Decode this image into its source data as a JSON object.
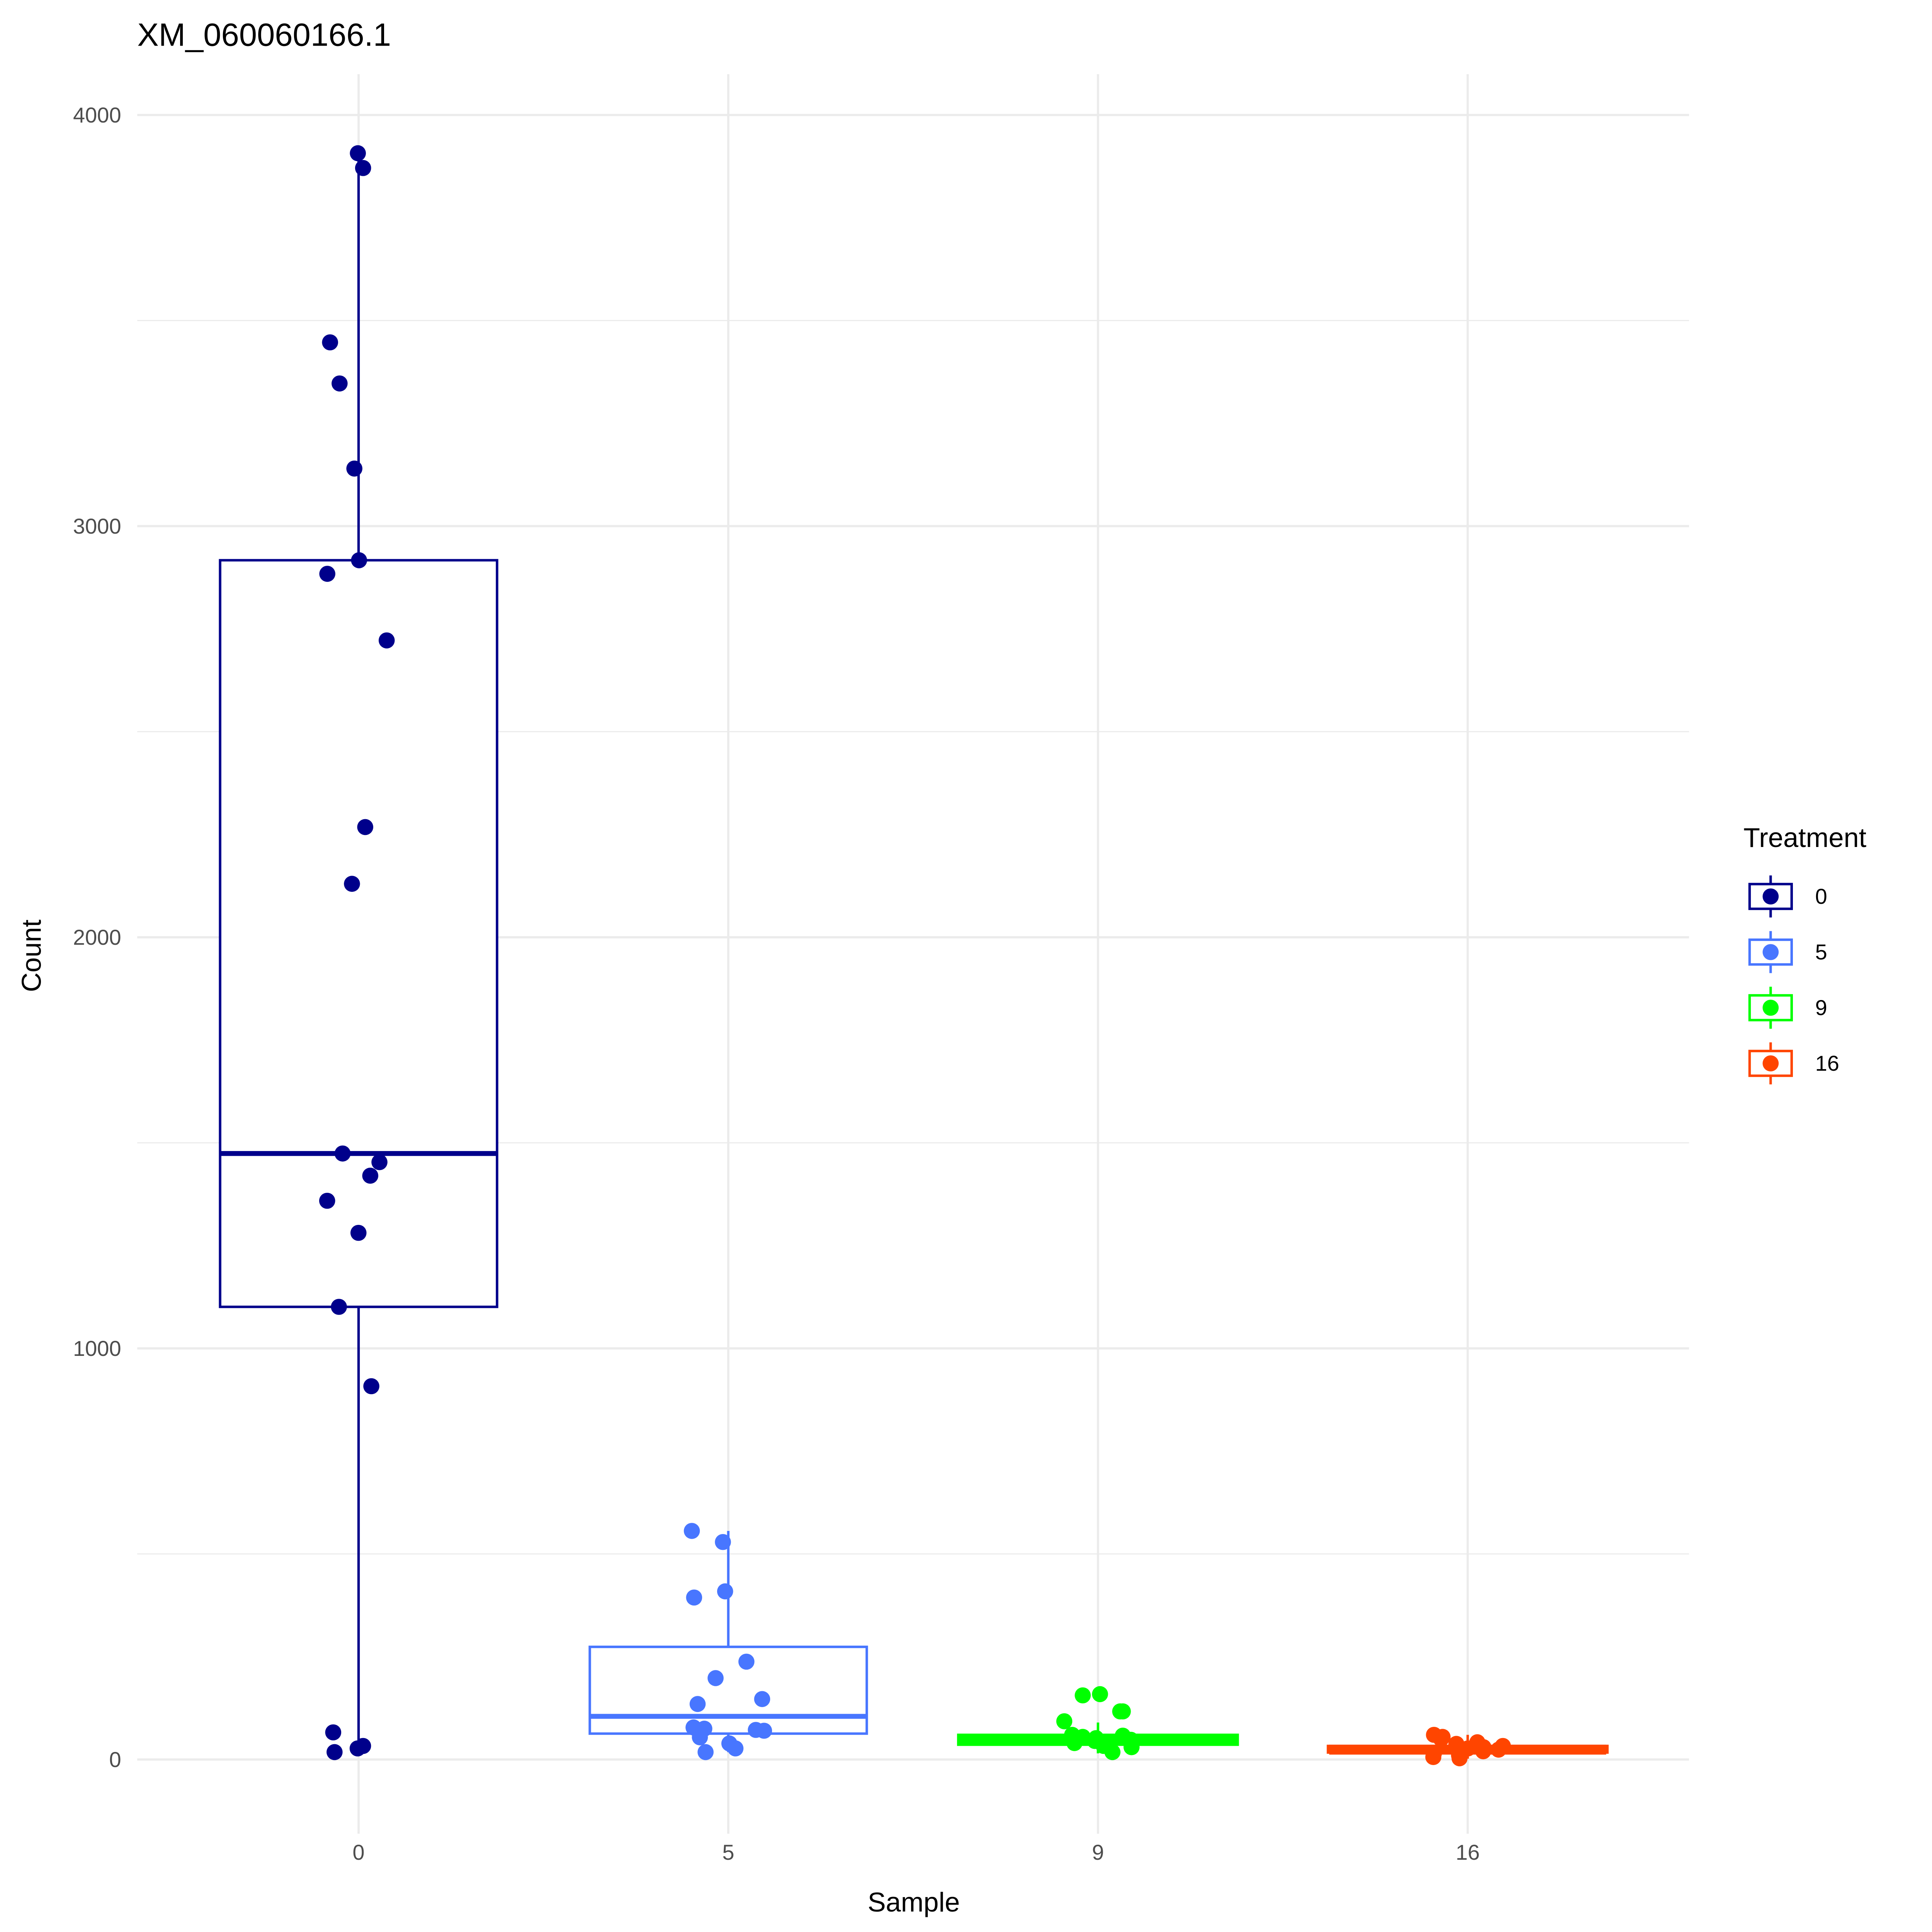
{
  "chart_data": {
    "type": "box",
    "title": "XM_060060166.1",
    "xlabel": "Sample",
    "ylabel": "Count",
    "ylim": [
      -180,
      4100
    ],
    "yticks": [
      "0",
      "1000",
      "2000",
      "3000",
      "4000"
    ],
    "ytick_values": [
      0,
      1000,
      2000,
      3000,
      4000
    ],
    "categories": [
      "0",
      "5",
      "9",
      "16"
    ],
    "grid": true,
    "legend": {
      "title": "Treatment",
      "position": "right",
      "labels": [
        "0",
        "5",
        "9",
        "16"
      ]
    },
    "colors": [
      "#00008B",
      "#4876FF",
      "#00FF00",
      "#FF4500"
    ],
    "series": [
      {
        "name": "0",
        "box": {
          "lower_whisker": 18,
          "q1": 1101,
          "median": 1474,
          "q3": 2917,
          "upper_whisker": 3907
        },
        "points": [
          3907,
          3871,
          3447,
          3347,
          3140,
          2917,
          2884,
          2722,
          2268,
          2130,
          1474,
          1453,
          1420,
          1359,
          1281,
          1101,
          908,
          66,
          33,
          27,
          18
        ]
      },
      {
        "name": "5",
        "box": {
          "lower_whisker": 18,
          "q1": 63,
          "median": 105,
          "q3": 274,
          "upper_whisker": 556
        },
        "points": [
          556,
          529,
          409,
          394,
          238,
          198,
          147,
          135,
          78,
          75,
          72,
          70,
          54,
          39,
          27,
          18
        ]
      },
      {
        "name": "9",
        "box": {
          "lower_whisker": 15,
          "q1": 39,
          "median": 48,
          "q3": 57,
          "upper_whisker": 90
        },
        "points": [
          159,
          156,
          117,
          117,
          93,
          60,
          58,
          55,
          52,
          48,
          45,
          40,
          33,
          30,
          18
        ]
      },
      {
        "name": "16",
        "box": {
          "lower_whisker": 2,
          "q1": 20,
          "median": 24,
          "q3": 30,
          "upper_whisker": 60
        },
        "points": [
          60,
          55,
          50,
          42,
          38,
          33,
          30,
          27,
          24,
          20,
          15,
          10,
          6,
          3
        ]
      }
    ]
  }
}
